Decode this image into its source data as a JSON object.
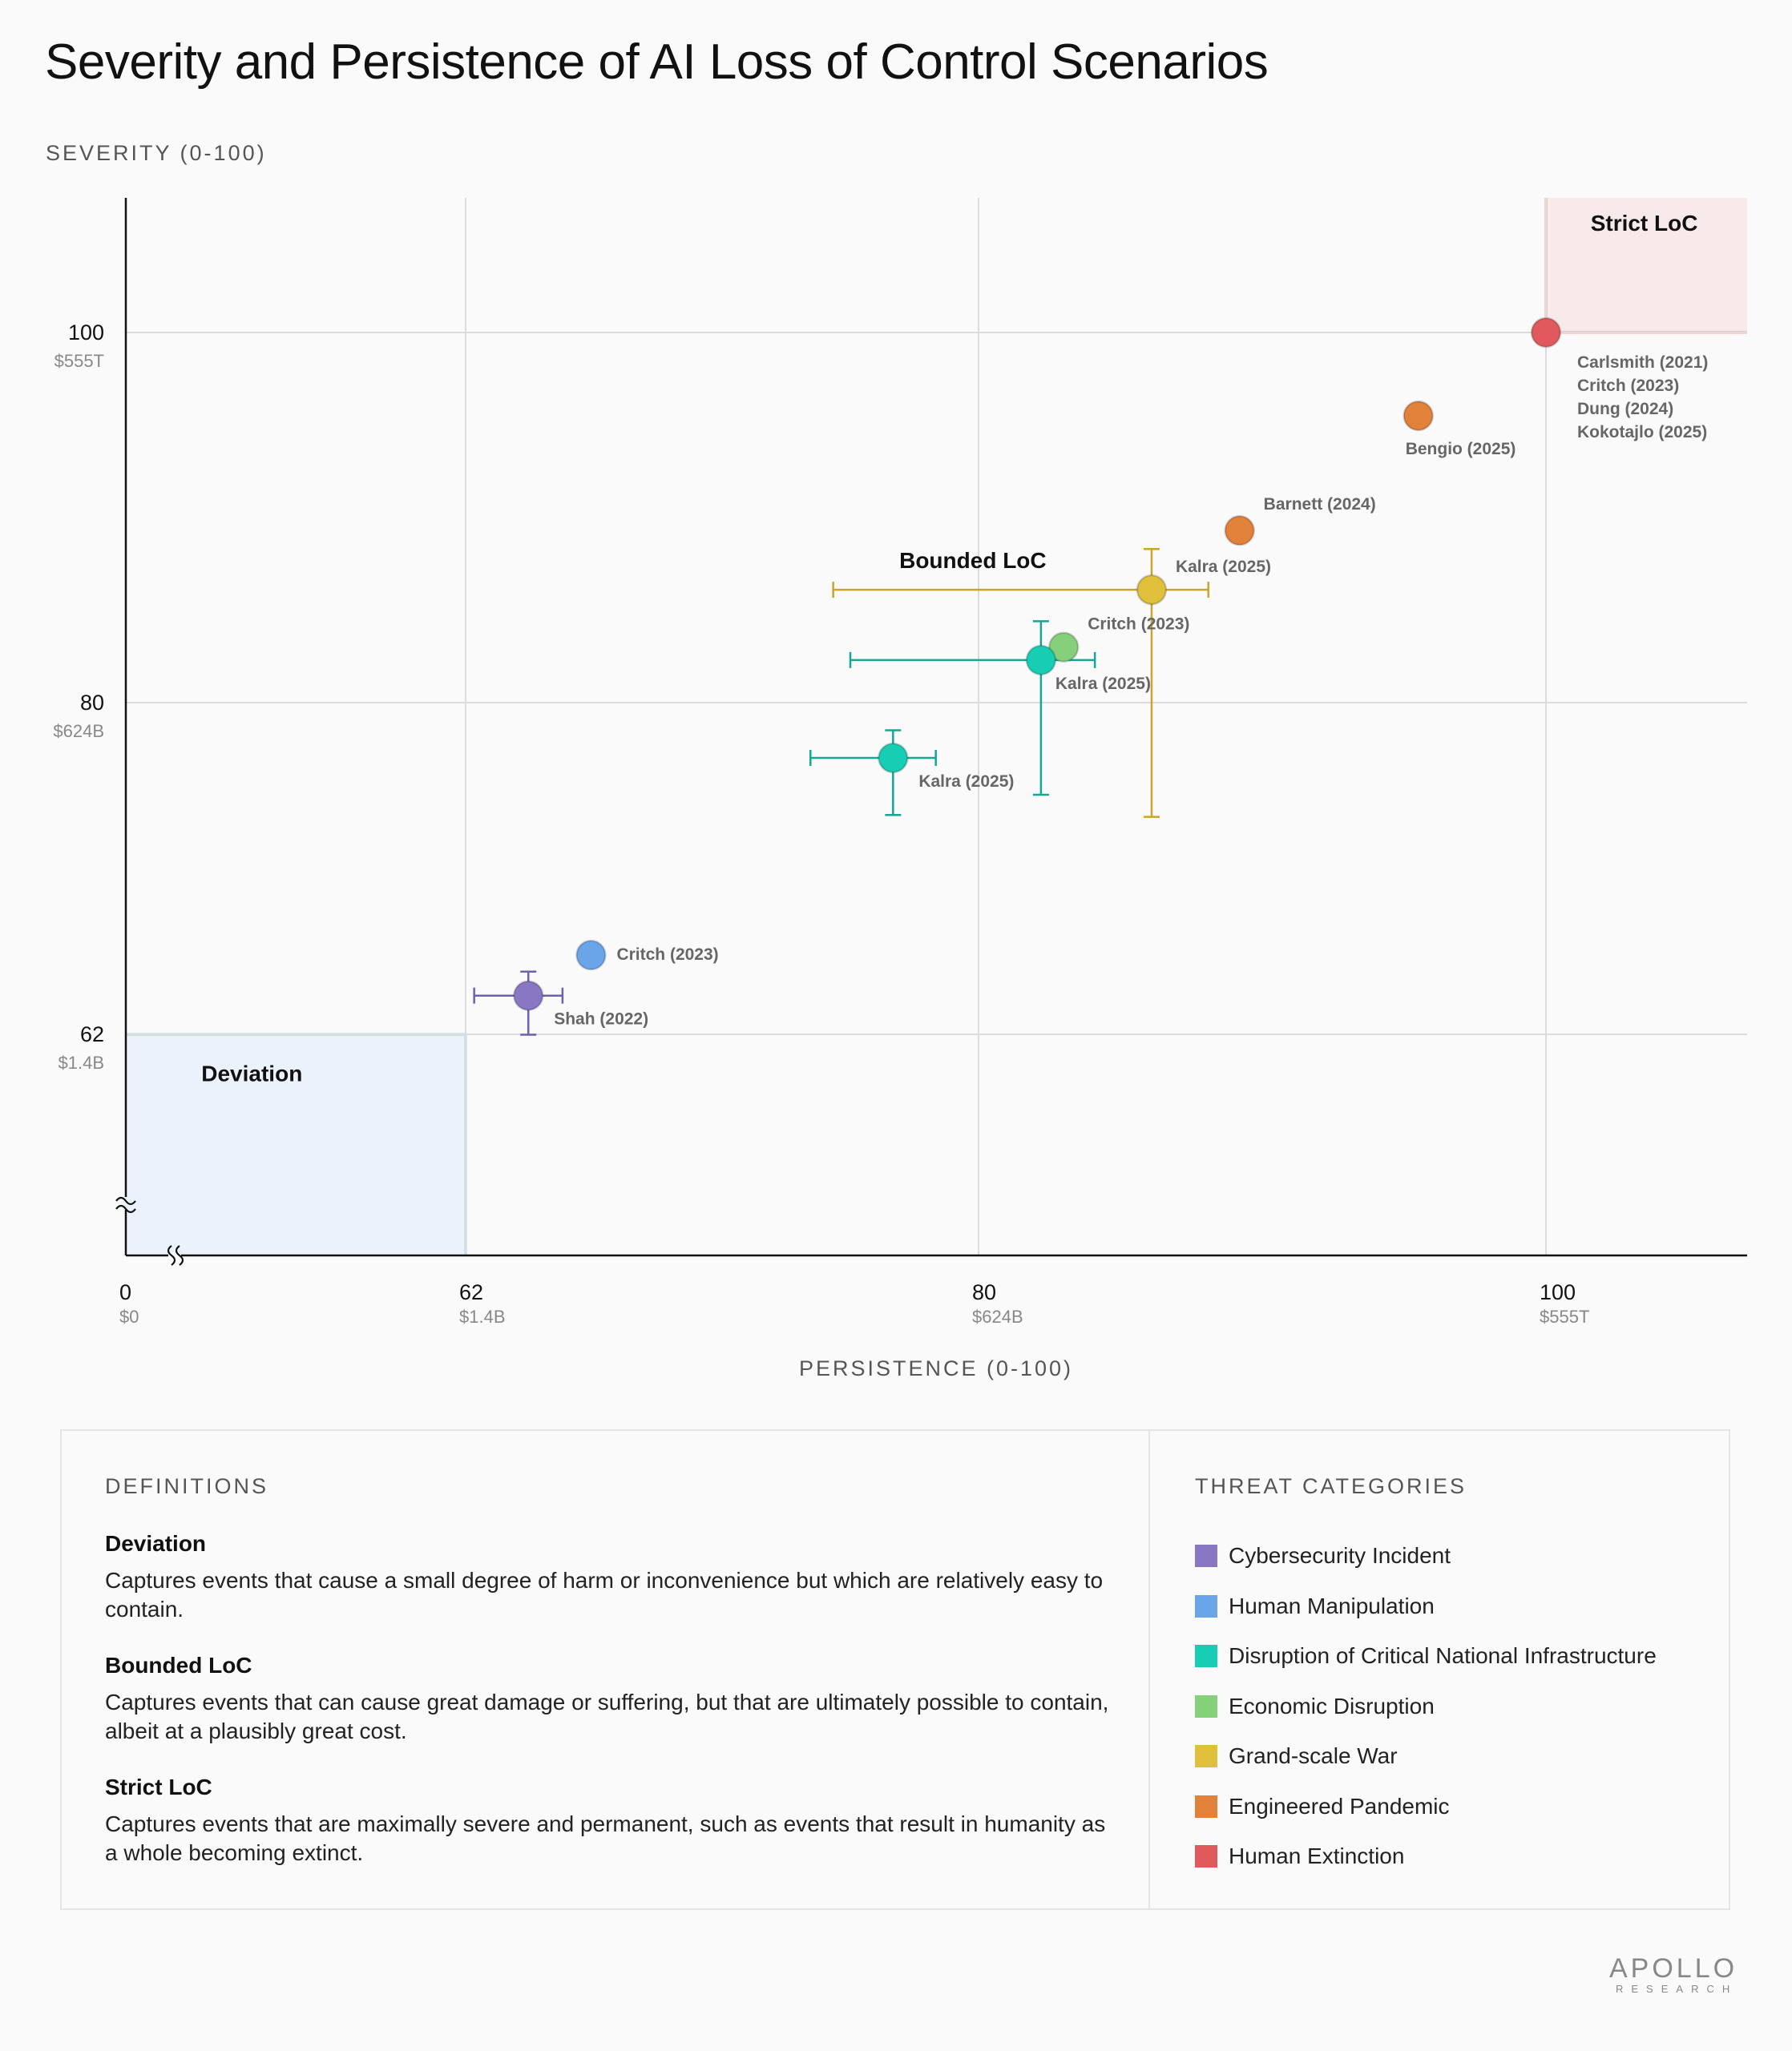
{
  "header": {
    "title": "Severity and Persistence of AI Loss of Control Scenarios"
  },
  "chart_data": {
    "type": "scatter",
    "title": "Severity and Persistence of AI Loss of Control Scenarios",
    "xlabel": "PERSISTENCE (0-100)",
    "ylabel": "SEVERITY (0-100)",
    "xlim": [
      0,
      104.3
    ],
    "ylim": [
      0,
      104.5
    ],
    "axis_breaks": {
      "x": "between 0 and 62",
      "y": "between 0 and 62"
    },
    "grid": true,
    "x_ticks": [
      {
        "value": 0,
        "label": "0",
        "sublabel": "$0"
      },
      {
        "value": 62,
        "label": "62",
        "sublabel": "$1.4B"
      },
      {
        "value": 80,
        "label": "80",
        "sublabel": "$624B"
      },
      {
        "value": 100,
        "label": "100",
        "sublabel": "$555T"
      }
    ],
    "y_ticks": [
      {
        "value": 62,
        "label": "62",
        "sublabel": "$1.4B"
      },
      {
        "value": 80,
        "label": "80",
        "sublabel": "$624B"
      },
      {
        "value": 100,
        "label": "100",
        "sublabel": "$555T"
      }
    ],
    "regions": [
      {
        "name": "Deviation",
        "x": [
          0,
          62
        ],
        "y": [
          0,
          62
        ],
        "fill": "#ecf2fb",
        "stroke": "#6aa5ea",
        "label_at": [
          23,
          50.5
        ]
      },
      {
        "name": "Bounded LoC",
        "label_at": [
          79.8,
          87.6
        ]
      },
      {
        "name": "Strict LoC",
        "x": [
          100,
          104.3
        ],
        "y": [
          100,
          104.5
        ],
        "fill": "#f8e9ea",
        "stroke": "#e0595d",
        "label_at": [
          102.1,
          103.6
        ]
      }
    ],
    "categories": [
      {
        "name": "Cybersecurity Incident",
        "color": "#8878c4"
      },
      {
        "name": "Human Manipulation",
        "color": "#6aa5ea"
      },
      {
        "name": "Disruption of Critical National Infrastructure",
        "color": "#17cdb4"
      },
      {
        "name": "Economic Disruption",
        "color": "#86d07c"
      },
      {
        "name": "Grand-scale War",
        "color": "#e0c03a"
      },
      {
        "name": "Engineered Pandemic",
        "color": "#e1813a"
      },
      {
        "name": "Human Extinction",
        "color": "#e0595d"
      }
    ],
    "points": [
      {
        "label": "Shah (2022)",
        "category": "Cybersecurity Incident",
        "x": 64.2,
        "y": 64.1,
        "x_err": [
          62.3,
          65.4
        ],
        "y_err": [
          61.9,
          65.4
        ],
        "label_pos": "below-right"
      },
      {
        "label": "Critch (2023)",
        "category": "Human Manipulation",
        "x": 66.4,
        "y": 66.3,
        "label_pos": "right"
      },
      {
        "label": "Kalra (2025)",
        "category": "Disruption of Critical National Infrastructure",
        "x": 77.0,
        "y": 77.0,
        "x_err": [
          74.1,
          78.5
        ],
        "y_err": [
          73.9,
          78.5
        ],
        "label_pos": "below-right"
      },
      {
        "label": "Kalra (2025)",
        "category": "Disruption of Critical National Infrastructure",
        "x": 82.2,
        "y": 82.3,
        "x_err": [
          75.5,
          84.1
        ],
        "y_err": [
          75.0,
          84.4
        ],
        "label_pos": "below-right"
      },
      {
        "label": "Critch (2023)",
        "category": "Economic Disruption",
        "x": 83.0,
        "y": 83.0,
        "label_pos": "upper-right"
      },
      {
        "label": "Kalra (2025)",
        "category": "Grand-scale War",
        "x": 86.1,
        "y": 86.1,
        "x_err": [
          74.9,
          88.1
        ],
        "y_err": [
          73.8,
          88.3
        ],
        "label_pos": "upper-right"
      },
      {
        "label": "Barnett (2024)",
        "category": "Engineered Pandemic",
        "x": 89.2,
        "y": 89.3,
        "label_pos": "upper-right"
      },
      {
        "label": "Bengio (2025)",
        "category": "Engineered Pandemic",
        "x": 95.5,
        "y": 95.5,
        "label_pos": "below"
      },
      {
        "label": "Carlsmith (2021)\nCritch (2023)\nDung (2024)\nKokotajlo (2025)",
        "category": "Human Extinction",
        "x": 100,
        "y": 100,
        "label_pos": "below-right"
      }
    ]
  },
  "definitions": {
    "heading": "DEFINITIONS",
    "items": [
      {
        "name": "Deviation",
        "text": "Captures events that cause a small degree of harm or inconvenience but which are relatively easy to contain."
      },
      {
        "name": "Bounded LoC",
        "text": "Captures events that can cause great damage or suffering, but that are ultimately possible to contain, albeit at a plausibly great cost."
      },
      {
        "name": "Strict LoC",
        "text": "Captures events that are maximally severe and permanent, such as events that result in humanity as a whole becoming extinct."
      }
    ]
  },
  "legend": {
    "heading": "THREAT CATEGORIES"
  },
  "logo": {
    "main": "APOLLO",
    "sub": "RESEARCH"
  }
}
